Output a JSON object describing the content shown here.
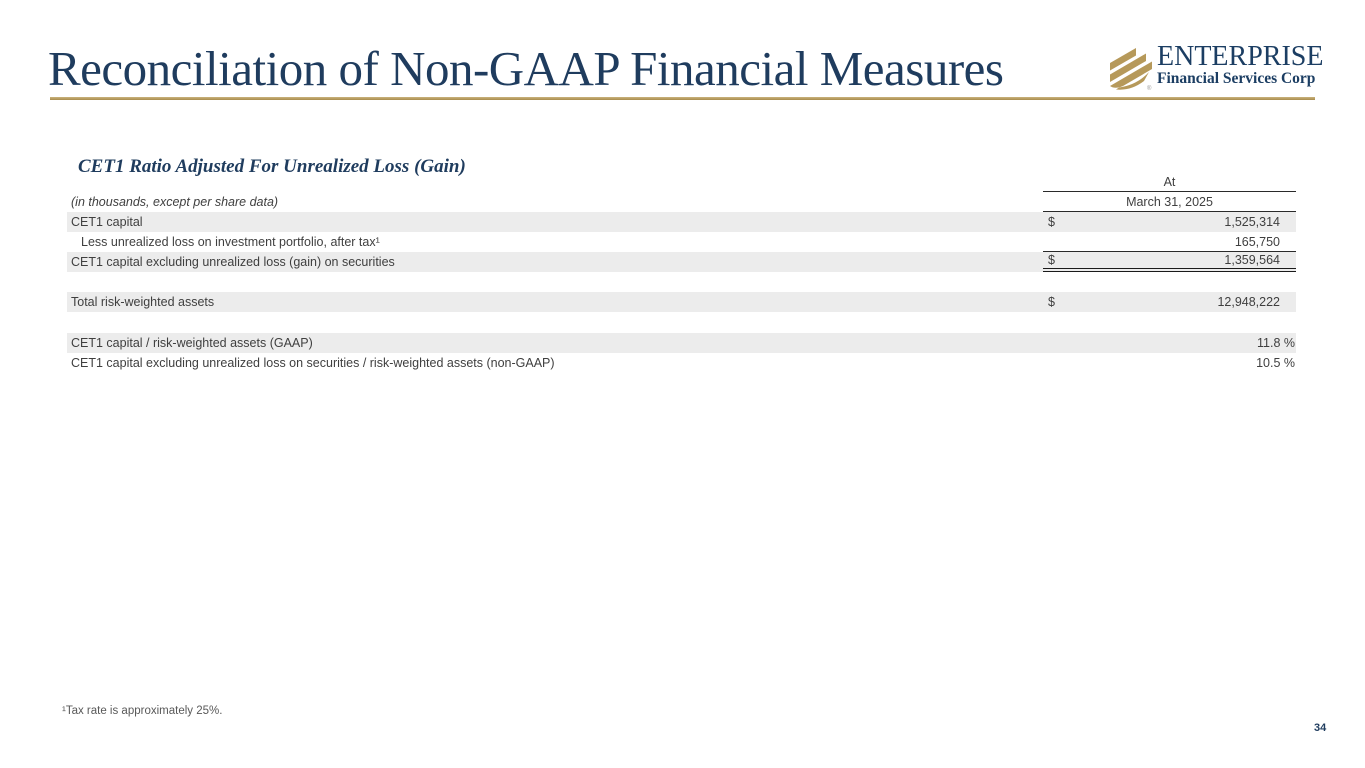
{
  "slide": {
    "title": "Reconciliation of Non-GAAP Financial Measures",
    "footnote": "¹Tax rate is approximately 25%.",
    "page_number": "34"
  },
  "logo": {
    "name": "ENTERPRISE",
    "subtitle": "Financial Services Corp",
    "registered_mark": "®",
    "icon": "enterprise-stripes-icon",
    "colors": {
      "navy": "#1c3e63",
      "gold": "#b6995a"
    }
  },
  "section": {
    "heading": "CET1 Ratio Adjusted For Unrealized Loss (Gain)"
  },
  "table": {
    "units_note": "(in thousands, except per share data)",
    "column_header": {
      "line1": "At",
      "line2": "March 31, 2025"
    },
    "rows": [
      {
        "label": "CET1 capital",
        "dollar": "$",
        "value": "1,525,314",
        "shaded": true,
        "indent": false,
        "border": "none",
        "percent": false
      },
      {
        "label": "Less unrealized loss on investment portfolio, after tax¹",
        "dollar": "",
        "value": "165,750",
        "shaded": false,
        "indent": true,
        "border": "single",
        "percent": false
      },
      {
        "label": "CET1 capital excluding unrealized loss (gain) on securities",
        "dollar": "$",
        "value": "1,359,564",
        "shaded": true,
        "indent": false,
        "border": "double",
        "percent": false
      },
      {
        "spacer": 20
      },
      {
        "label": "Total risk-weighted assets",
        "dollar": "$",
        "value": "12,948,222",
        "shaded": true,
        "indent": false,
        "border": "none",
        "percent": false
      },
      {
        "spacer": 21
      },
      {
        "label": "CET1 capital / risk-weighted assets (GAAP)",
        "dollar": "",
        "value": "11.8 %",
        "shaded": true,
        "indent": false,
        "border": "none",
        "percent": true
      },
      {
        "label": "CET1 capital excluding unrealized loss on securities / risk-weighted assets (non-GAAP)",
        "dollar": "",
        "value": "10.5 %",
        "shaded": false,
        "indent": false,
        "border": "none",
        "percent": true
      }
    ]
  },
  "colors": {
    "title_navy": "#1f3c5e",
    "underline_gold": "#b0955c",
    "row_shade": "#ececec",
    "table_text": "#3f3f3f"
  }
}
